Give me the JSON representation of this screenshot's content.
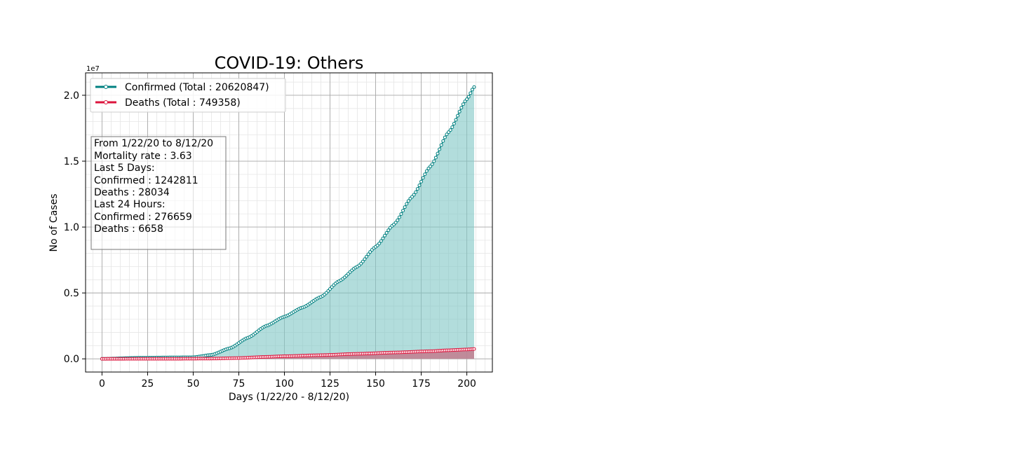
{
  "chart_data": {
    "type": "line",
    "title": "COVID-19: Others",
    "xlabel": "Days (1/22/20 - 8/12/20)",
    "ylabel": "No of Cases",
    "y_offset_label": "1e7",
    "xlim": [
      -9,
      214
    ],
    "ylim": [
      -1000000,
      21700000
    ],
    "x_ticks": [
      0,
      25,
      50,
      75,
      100,
      125,
      150,
      175,
      200
    ],
    "y_ticks": [
      0,
      5000000,
      10000000,
      15000000,
      20000000
    ],
    "y_tick_labels": [
      "0.0",
      "0.5",
      "1.0",
      "1.5",
      "2.0"
    ],
    "grid": true,
    "legend_position": "upper-left",
    "series": [
      {
        "name": "Confirmed (Total : 20620847)",
        "color": "#008080",
        "fill": "#7fc6c4",
        "keypoints": [
          [
            0,
            500
          ],
          [
            20,
            80000
          ],
          [
            40,
            110000
          ],
          [
            50,
            120000
          ],
          [
            60,
            300000
          ],
          [
            70,
            800000
          ],
          [
            80,
            1600000
          ],
          [
            90,
            2500000
          ],
          [
            100,
            3200000
          ],
          [
            110,
            3900000
          ],
          [
            120,
            4700000
          ],
          [
            130,
            5900000
          ],
          [
            140,
            7000000
          ],
          [
            150,
            8500000
          ],
          [
            160,
            10200000
          ],
          [
            170,
            12300000
          ],
          [
            180,
            14600000
          ],
          [
            190,
            17200000
          ],
          [
            200,
            19700000
          ],
          [
            204,
            20620847
          ]
        ]
      },
      {
        "name": "Deaths (Total : 749358)",
        "color": "#dc143c",
        "fill": "#c27c8e",
        "keypoints": [
          [
            0,
            10
          ],
          [
            40,
            5000
          ],
          [
            60,
            20000
          ],
          [
            75,
            60000
          ],
          [
            90,
            150000
          ],
          [
            100,
            200000
          ],
          [
            120,
            280000
          ],
          [
            140,
            380000
          ],
          [
            160,
            480000
          ],
          [
            180,
            580000
          ],
          [
            190,
            650000
          ],
          [
            200,
            710000
          ],
          [
            204,
            749358
          ]
        ]
      }
    ],
    "info_box": {
      "lines": [
        "From 1/22/20 to 8/12/20",
        "Mortality rate : 3.63",
        "Last 5 Days:",
        "Confirmed : 1242811",
        "Deaths : 28034",
        "Last 24 Hours:",
        "Confirmed : 276659",
        "Deaths : 6658"
      ]
    }
  }
}
